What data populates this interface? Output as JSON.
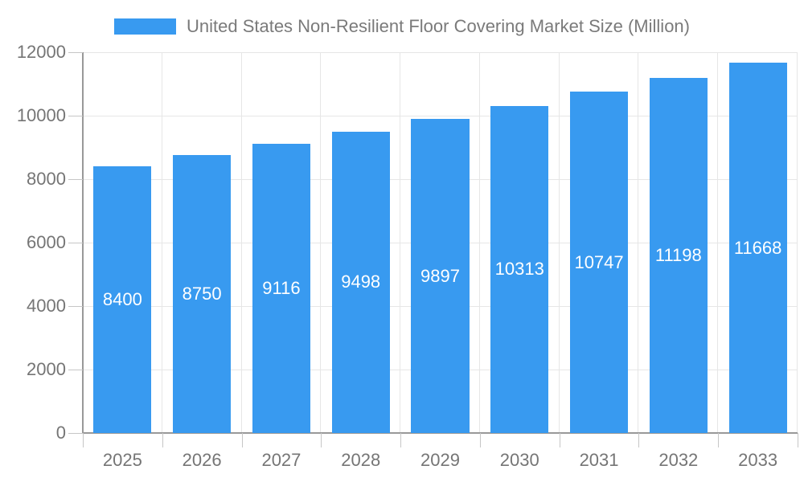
{
  "chart_data": {
    "type": "bar",
    "title": "United States Non-Resilient Floor Covering Market Size (Million)",
    "categories": [
      "2025",
      "2026",
      "2027",
      "2028",
      "2029",
      "2030",
      "2031",
      "2032",
      "2033"
    ],
    "values": [
      8400,
      8750,
      9116,
      9498,
      9897,
      10313,
      10747,
      11198,
      11668
    ],
    "xlabel": "",
    "ylabel": "",
    "ylim": [
      0,
      12000
    ],
    "yticks": [
      0,
      2000,
      4000,
      6000,
      8000,
      10000,
      12000
    ],
    "grid": "horizontal-and-vertical",
    "legend_position": "top-center",
    "bar_color": "#389AF0",
    "bar_label_color": "#ffffff",
    "axis_text_color": "#757575",
    "grid_color": "#e6e6e6",
    "axis_line_color": "#999999",
    "tick_color": "#c6c6c6",
    "background_color": "#ffffff"
  }
}
